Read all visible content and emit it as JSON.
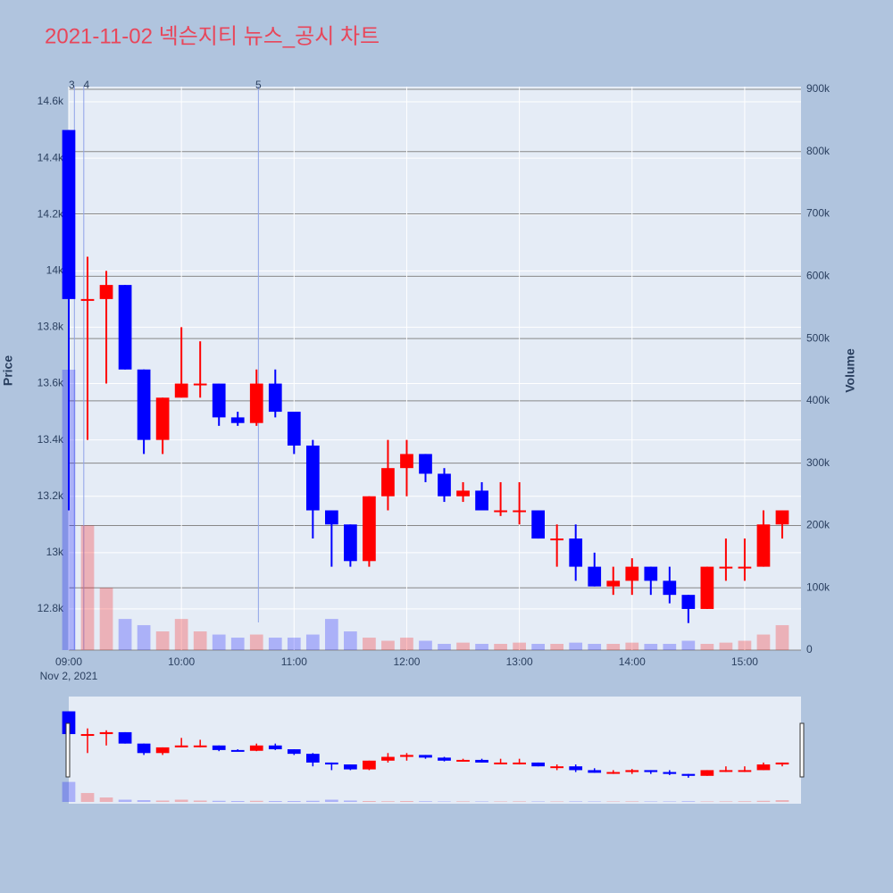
{
  "chart_data": {
    "type": "candlestick",
    "title": "2021-11-02 넥슨지티 뉴스_공시 차트",
    "x_date_label": "Nov 2, 2021",
    "y_title": "Price",
    "y2_title": "Volume",
    "x": [
      "09:00",
      "09:10",
      "09:20",
      "09:30",
      "09:40",
      "09:50",
      "10:00",
      "10:10",
      "10:20",
      "10:30",
      "10:40",
      "10:50",
      "11:00",
      "11:10",
      "11:20",
      "11:30",
      "11:40",
      "11:50",
      "12:00",
      "12:10",
      "12:20",
      "12:30",
      "12:40",
      "12:50",
      "13:00",
      "13:10",
      "13:20",
      "13:30",
      "13:40",
      "13:50",
      "14:00",
      "14:10",
      "14:20",
      "14:30",
      "14:40",
      "14:50",
      "15:00",
      "15:10",
      "15:20"
    ],
    "open": [
      14500,
      13900,
      13900,
      13950,
      13650,
      13400,
      13550,
      13600,
      13600,
      13480,
      13460,
      13600,
      13500,
      13380,
      13150,
      13100,
      12970,
      13200,
      13300,
      13350,
      13280,
      13200,
      13220,
      13150,
      13150,
      13150,
      13050,
      13050,
      12950,
      12880,
      12900,
      12950,
      12900,
      12850,
      12800,
      12950,
      12950,
      12950,
      13100
    ],
    "high": [
      14500,
      14050,
      14000,
      13950,
      13650,
      13550,
      13800,
      13750,
      13600,
      13500,
      13650,
      13650,
      13500,
      13400,
      13150,
      13100,
      13200,
      13400,
      13400,
      13350,
      13300,
      13250,
      13250,
      13250,
      13250,
      13150,
      13100,
      13100,
      13000,
      12950,
      12980,
      12950,
      12950,
      12850,
      12950,
      13050,
      13050,
      13150,
      13150
    ],
    "low": [
      13150,
      13400,
      13600,
      13650,
      13350,
      13350,
      13550,
      13550,
      13450,
      13450,
      13450,
      13480,
      13350,
      13050,
      12950,
      12950,
      12950,
      13150,
      13200,
      13250,
      13180,
      13180,
      13150,
      13130,
      13100,
      13050,
      12950,
      12900,
      12880,
      12850,
      12850,
      12850,
      12820,
      12750,
      12800,
      12900,
      12900,
      12950,
      13050
    ],
    "close": [
      13900,
      13900,
      13950,
      13650,
      13400,
      13550,
      13600,
      13600,
      13480,
      13460,
      13600,
      13500,
      13380,
      13150,
      13100,
      12970,
      13200,
      13300,
      13350,
      13280,
      13200,
      13220,
      13150,
      13150,
      13150,
      13050,
      13050,
      12950,
      12880,
      12900,
      12950,
      12900,
      12850,
      12800,
      12950,
      12950,
      12950,
      13100,
      13150
    ],
    "volume": [
      450000,
      200000,
      100000,
      50000,
      40000,
      30000,
      50000,
      30000,
      25000,
      20000,
      25000,
      20000,
      20000,
      25000,
      50000,
      30000,
      20000,
      15000,
      20000,
      15000,
      10000,
      12000,
      10000,
      10000,
      12000,
      10000,
      10000,
      12000,
      10000,
      10000,
      12000,
      10000,
      10000,
      15000,
      10000,
      12000,
      15000,
      25000,
      40000
    ],
    "increasing_color": "#ff0000",
    "decreasing_color": "#0000ff",
    "xlim": [
      "09:00",
      "15:30"
    ],
    "xticks": [
      "09:00",
      "10:00",
      "11:00",
      "12:00",
      "13:00",
      "14:00",
      "15:00"
    ],
    "ylim": [
      12654,
      14654
    ],
    "yticks": [
      {
        "value": 12800,
        "label": "12.8k"
      },
      {
        "value": 13000,
        "label": "13k"
      },
      {
        "value": 13200,
        "label": "13.2k"
      },
      {
        "value": 13400,
        "label": "13.4k"
      },
      {
        "value": 13600,
        "label": "13.6k"
      },
      {
        "value": 13800,
        "label": "13.8k"
      },
      {
        "value": 14000,
        "label": "14k"
      },
      {
        "value": 14200,
        "label": "14.2k"
      },
      {
        "value": 14400,
        "label": "14.4k"
      },
      {
        "value": 14600,
        "label": "14.6k"
      }
    ],
    "y2lim": [
      0,
      904300
    ],
    "y2ticks": [
      0,
      {
        "value": 100000,
        "label": "100k"
      },
      {
        "value": 200000,
        "label": "200k"
      },
      {
        "value": 300000,
        "label": "300k"
      },
      {
        "value": 400000,
        "label": "400k"
      },
      {
        "value": 500000,
        "label": "500k"
      },
      {
        "value": 600000,
        "label": "600k"
      },
      {
        "value": 700000,
        "label": "700k"
      },
      {
        "value": 800000,
        "label": "800k"
      },
      {
        "value": 900000,
        "label": "900k"
      }
    ],
    "news_markers": [
      {
        "x": "09:03",
        "label": "3"
      },
      {
        "x": "09:08",
        "label": "4"
      },
      {
        "x": "10:41",
        "label": "5"
      }
    ]
  }
}
